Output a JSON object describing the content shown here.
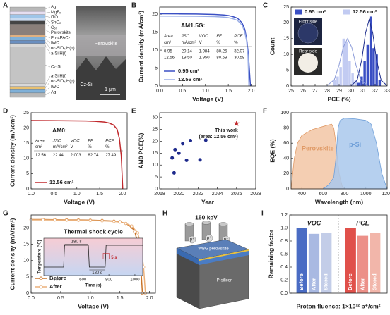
{
  "figure_a": {
    "panel": "A",
    "layers": [
      "Ag",
      "MgFₓ",
      "ITO",
      "SnO₂",
      "C₆₀",
      "Perovskite",
      "Ph-4PACz",
      "IWO",
      "nc-SiOₓ:H(n)",
      "a-Si:H(i)",
      "Cz-Si",
      "a-Si:H(i)",
      "nc-SiOₓ:H(p)",
      "IWO",
      "Ag"
    ],
    "image_labels": [
      "Perovskite",
      "Cz-Si"
    ],
    "scale_bar": "1 μm"
  },
  "figure_h": {
    "panel": "H",
    "energy": "150 keV",
    "beam_labels": [
      "p⁺",
      "p⁺",
      "p⁺"
    ],
    "layer_labels": [
      "WBG perovskite",
      "P-silicon"
    ]
  },
  "chart_data": [
    {
      "panel": "B",
      "type": "line",
      "note": "AM1.5G:",
      "xlabel": "Voltage (V)",
      "ylabel": "Current density (mA/cm²)",
      "xlim": [
        0,
        2.1
      ],
      "xticks": [
        {
          "value": 0,
          "label": "0.0"
        },
        0.5,
        {
          "value": 1,
          "label": "1.0"
        },
        1.5,
        {
          "value": 2,
          "label": "2.0"
        }
      ],
      "ylim": [
        0,
        22
      ],
      "yticks": [
        0,
        5,
        10,
        15,
        20
      ],
      "legend": "lower left",
      "table": {
        "header": [
          "Area",
          "JSC",
          "VOC",
          "FF",
          "PCE"
        ],
        "units": [
          "cm²",
          "mA/cm²",
          "V",
          "%",
          "%"
        ],
        "rows": [
          [
            "0.95",
            "20.14",
            "1.984",
            "80.25",
            "32.07"
          ],
          [
            "12.56",
            "19.50",
            "1.950",
            "80.59",
            "30.58"
          ]
        ]
      },
      "series": [
        {
          "name": "0.95 cm²",
          "color": "#3a4fc4",
          "x": [
            0,
            0.4,
            0.8,
            1.2,
            1.4,
            1.5,
            1.6,
            1.7,
            1.8,
            1.86,
            1.9,
            1.94,
            1.984
          ],
          "values": [
            20.14,
            20.1,
            20.05,
            19.95,
            19.8,
            19.65,
            19.35,
            18.9,
            17.6,
            15.8,
            13.2,
            8.7,
            0
          ]
        },
        {
          "name": "12.56 cm²",
          "color": "#9aaee6",
          "x": [
            0,
            0.4,
            0.8,
            1.2,
            1.4,
            1.5,
            1.6,
            1.7,
            1.8,
            1.86,
            1.9,
            1.93,
            1.95
          ],
          "values": [
            19.5,
            19.48,
            19.44,
            19.35,
            19.2,
            19.05,
            18.75,
            18.3,
            17,
            15,
            12.5,
            8.5,
            0
          ]
        }
      ]
    },
    {
      "panel": "C",
      "type": "histogram",
      "xlabel": "PCE (%)",
      "ylabel": "Count",
      "xlim": [
        25,
        33
      ],
      "xticks": [
        25,
        26,
        27,
        28,
        29,
        30,
        31,
        32,
        33
      ],
      "ylim": [
        0,
        25
      ],
      "yticks": [
        0,
        5,
        10,
        15,
        20,
        25
      ],
      "legend": "top",
      "inset_labels": [
        "Front side",
        "Rear side"
      ],
      "series": [
        {
          "name": "0.95 cm²",
          "color": "#3a4fc4",
          "line_color": "#1a2a8a",
          "bins": [
            30.5,
            30.75,
            31,
            31.25,
            31.5,
            31.75,
            32,
            32.25,
            32.5
          ],
          "values": [
            1,
            3,
            8,
            13,
            22,
            12,
            10,
            2
          ],
          "fit": {
            "x": [
              30,
              30.5,
              30.9,
              31.2,
              31.5,
              31.8,
              32.1,
              32.5,
              33
            ],
            "values": [
              0.1,
              1.8,
              8.6,
              16.8,
              21,
              16.8,
              8.6,
              1.8,
              0.1
            ]
          }
        },
        {
          "name": "12.56 cm²",
          "color": "#c2cbf2",
          "line_color": "#8a9ad8",
          "bins": [
            28.5,
            28.75,
            29,
            29.25,
            29.5,
            29.75,
            30,
            30.25,
            30.5
          ],
          "values": [
            2,
            3,
            6,
            15,
            14,
            8,
            4,
            2
          ],
          "fit": {
            "x": [
              28,
              28.6,
              29,
              29.35,
              29.7,
              30.05,
              30.4,
              30.8,
              31.4
            ],
            "values": [
              0.1,
              2,
              6.7,
              12.3,
              15,
              12.3,
              6.7,
              2,
              0.1
            ]
          }
        }
      ]
    },
    {
      "panel": "D",
      "type": "line",
      "note": "AM0:",
      "xlabel": "Voltage (V)",
      "ylabel": "Current density (mA/cm²)",
      "xlim": [
        0,
        2.1
      ],
      "xticks": [
        {
          "value": 0,
          "label": "0.0"
        },
        0.5,
        {
          "value": 1,
          "label": "1.0"
        },
        1.5,
        {
          "value": 2,
          "label": "2.0"
        }
      ],
      "ylim": [
        0,
        25
      ],
      "yticks": [
        0,
        5,
        10,
        15,
        20,
        25
      ],
      "legend": "lower left",
      "table": {
        "header": [
          "Area",
          "JSC",
          "VOC",
          "FF",
          "PCE"
        ],
        "units": [
          "cm²",
          "mA/cm²",
          "V",
          "%",
          "%"
        ],
        "rows": [
          [
            "12.56",
            "22.44",
            "2.003",
            "82.74",
            "27.49"
          ]
        ]
      },
      "series": [
        {
          "name": "12.56 cm²",
          "color": "#c0282c",
          "x": [
            0,
            0.4,
            0.8,
            1.2,
            1.4,
            1.6,
            1.7,
            1.8,
            1.88,
            1.93,
            1.97,
            2.003
          ],
          "values": [
            22.44,
            22.42,
            22.38,
            22.3,
            22.2,
            21.95,
            21.65,
            21.0,
            19.6,
            16.5,
            11,
            0
          ]
        }
      ]
    },
    {
      "panel": "E",
      "type": "scatter",
      "xlabel": "Year",
      "ylabel": "AM0 PCE(%)",
      "xlim": [
        2018,
        2028
      ],
      "xticks": [
        2018,
        2020,
        2022,
        2024,
        2026,
        2028
      ],
      "ylim": [
        0,
        32
      ],
      "yticks": [
        0,
        5,
        10,
        15,
        20,
        25,
        30
      ],
      "annotation": [
        "This work",
        "(area: 12.56 cm²)"
      ],
      "series": [
        {
          "color": "#1e2a8c",
          "marker": "circle",
          "x": [
            2019.5,
            2019.3,
            2019.6,
            2020,
            2020.4,
            2020.8,
            2021.2,
            2022.2,
            2022.8
          ],
          "values": [
            6.7,
            13,
            16.5,
            15,
            19,
            12,
            20.3,
            12.2,
            20.5
          ]
        },
        {
          "color": "#c0282c",
          "marker": "star",
          "x": [
            2026
          ],
          "values": [
            27.49
          ]
        }
      ]
    },
    {
      "panel": "F",
      "type": "area",
      "xlabel": "Wavelength (nm)",
      "ylabel": "EQE (%)",
      "xlim": [
        300,
        1200
      ],
      "xticks": [
        400,
        600,
        800,
        1000,
        1200
      ],
      "ylim": [
        0,
        100
      ],
      "yticks": [
        0,
        20,
        40,
        60,
        80,
        100
      ],
      "series": [
        {
          "name": "Perovskite",
          "color": "#f2c6a4",
          "line_color": "#e09a66",
          "x": [
            300,
            330,
            360,
            400,
            500,
            600,
            650,
            680,
            700,
            720,
            750,
            780,
            800
          ],
          "values": [
            0,
            40,
            60,
            70,
            78,
            82,
            84,
            85,
            80,
            60,
            20,
            3,
            0
          ]
        },
        {
          "name": "p-Si",
          "color": "#a9c8ec",
          "line_color": "#6f9fd8",
          "x": [
            600,
            650,
            700,
            720,
            740,
            760,
            800,
            900,
            1000,
            1050,
            1100,
            1150,
            1200
          ],
          "values": [
            0,
            5,
            15,
            40,
            80,
            90,
            93,
            92,
            90,
            85,
            60,
            20,
            0
          ]
        }
      ]
    },
    {
      "panel": "G",
      "type": "line",
      "markers": true,
      "xlabel": "Voltage (V)",
      "ylabel": "Current density (mA/cm²)",
      "xlim": [
        0,
        2.1
      ],
      "xticks": [
        {
          "value": 0,
          "label": "0.0"
        },
        0.5,
        {
          "value": 1,
          "label": "1.0"
        },
        1.5,
        {
          "value": 2,
          "label": "2.0"
        }
      ],
      "ylim": [
        0,
        24
      ],
      "yticks": [
        0,
        5,
        10,
        15,
        20
      ],
      "legend": "lower left",
      "inset": {
        "title": "Thermal shock cycle",
        "xlabel": "Time (s)",
        "ylabel": "Temperature (°C)",
        "xlim": [
          300,
          1060
        ],
        "xticks": [
          400,
          600,
          800,
          1000
        ],
        "annotations": [
          "180 s",
          "5 s",
          "180 s"
        ]
      },
      "series": [
        {
          "name": "Before",
          "color": "#c8742a",
          "x": [
            0,
            0.2,
            0.4,
            0.6,
            0.8,
            1.0,
            1.2,
            1.4,
            1.5,
            1.6,
            1.7,
            1.75,
            1.8,
            1.85,
            1.88
          ],
          "values": [
            22.6,
            22.6,
            22.55,
            22.5,
            22.45,
            22.4,
            22.3,
            22.1,
            21.9,
            21.4,
            20.2,
            18.9,
            15.5,
            9,
            0
          ]
        },
        {
          "name": "After",
          "color": "#eab07a",
          "x": [
            0,
            0.2,
            0.4,
            0.6,
            0.8,
            1.0,
            1.2,
            1.4,
            1.5,
            1.6,
            1.7,
            1.8,
            1.85,
            1.9,
            1.93
          ],
          "values": [
            22.5,
            22.5,
            22.45,
            22.4,
            22.35,
            22.3,
            22.2,
            22,
            21.8,
            21.4,
            20.6,
            18.5,
            15,
            8,
            0
          ]
        }
      ]
    },
    {
      "panel": "I",
      "type": "bar",
      "xlabel": "Proton fluence: 1×10¹² p⁺/cm²",
      "ylabel": "Remaining factor",
      "ylim": [
        0,
        1.2
      ],
      "yticks": [
        {
          "value": 0,
          "label": "0.0"
        },
        0.2,
        0.4,
        0.6,
        0.8,
        {
          "value": 1,
          "label": "1.0"
        },
        1.2
      ],
      "series": [
        {
          "name": "VOC",
          "categories": [
            "Before",
            "After",
            "Stored"
          ],
          "values": [
            1,
            0.91,
            0.92
          ],
          "colors": [
            "#4a6cc4",
            "#a9b9e2",
            "#c3cde8"
          ]
        },
        {
          "name": "PCE",
          "categories": [
            "Before",
            "After",
            "Stored"
          ],
          "values": [
            1,
            0.88,
            0.92
          ],
          "colors": [
            "#e0504a",
            "#ec9088",
            "#f2b6aa"
          ]
        }
      ]
    }
  ]
}
